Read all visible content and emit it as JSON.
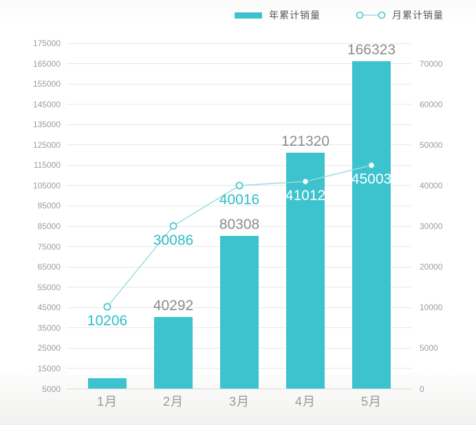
{
  "legend": {
    "items": [
      {
        "id": "yearly",
        "label": "年累计销量",
        "symbol": "bar-swatch"
      },
      {
        "id": "monthly",
        "label": "月累计销量",
        "symbol": "line-with-markers"
      }
    ]
  },
  "chart_data": {
    "type": "bar",
    "subtype": "bar+line combo with dual y-axes",
    "title": "",
    "categories": [
      "1月",
      "2月",
      "3月",
      "4月",
      "5月"
    ],
    "series": [
      {
        "name": "年累计销量",
        "type": "bar",
        "y_axis": "left",
        "values": [
          10206,
          40292,
          80308,
          121320,
          166323
        ],
        "data_labels": [
          "",
          "40292",
          "80308",
          "121320",
          "166323"
        ]
      },
      {
        "name": "月累计销量",
        "type": "line",
        "y_axis": "right",
        "values": [
          10206,
          30086,
          40016,
          41012,
          45003
        ],
        "data_labels": [
          "10206",
          "30086",
          "40016",
          "41012",
          "45003"
        ]
      }
    ],
    "left_axis": {
      "min": 5000,
      "max": 175000,
      "tick_labels": [
        "5000",
        "15000",
        "25000",
        "35000",
        "45000",
        "55000",
        "65000",
        "75000",
        "85000",
        "95000",
        "105000",
        "115000",
        "125000",
        "135000",
        "145000",
        "155000",
        "165000",
        "175000"
      ]
    },
    "right_axis": {
      "tick_labels": [
        "0",
        "5000",
        "10000",
        "20000",
        "30000",
        "40000",
        "50000",
        "60000",
        "70000"
      ]
    },
    "grid": true,
    "legend_position": "top-right"
  },
  "colors": {
    "bar": "#3cc3cd",
    "line": "#9adce1",
    "marker_stroke": "#4cc6d0",
    "marker_fill": "#ffffff",
    "bar_label": "#8c8c8c",
    "line_label_teal": "#2ebec9",
    "line_label_white": "#ffffff",
    "axis_text": "#9c9c9c",
    "month_text": "#9a9a9a",
    "grid_line": "#e8e8e8",
    "axis_line": "#d9d9d9",
    "legend_text": "#575757"
  }
}
